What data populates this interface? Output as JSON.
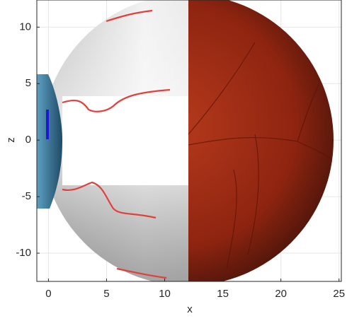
{
  "chart_data": {
    "type": "surface",
    "xlabel": "x",
    "ylabel": "z",
    "xlim": [
      -1,
      25.2
    ],
    "ylim": [
      -12.5,
      12.4
    ],
    "xticks": [
      0,
      5,
      10,
      15,
      20,
      25
    ],
    "yticks": [
      -10,
      -5,
      0,
      5,
      10
    ],
    "grid": true
  }
}
